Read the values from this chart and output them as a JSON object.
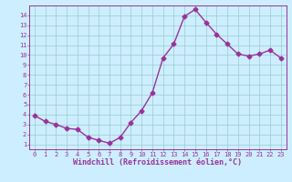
{
  "x": [
    0,
    1,
    2,
    3,
    4,
    5,
    6,
    7,
    8,
    9,
    10,
    11,
    12,
    13,
    14,
    15,
    16,
    17,
    18,
    19,
    20,
    21,
    22,
    23
  ],
  "y": [
    3.9,
    3.3,
    3.0,
    2.6,
    2.5,
    1.7,
    1.4,
    1.1,
    1.7,
    3.2,
    4.4,
    6.2,
    9.7,
    11.1,
    13.9,
    14.6,
    13.3,
    12.1,
    11.1,
    10.1,
    9.9,
    10.1,
    10.5,
    9.7
  ],
  "line_color": "#993399",
  "marker": "D",
  "markersize": 2.5,
  "linewidth": 1.0,
  "xlabel": "Windchill (Refroidissement éolien,°C)",
  "xlim": [
    -0.5,
    23.5
  ],
  "ylim": [
    0.5,
    15.0
  ],
  "yticks": [
    1,
    2,
    3,
    4,
    5,
    6,
    7,
    8,
    9,
    10,
    11,
    12,
    13,
    14
  ],
  "xticks": [
    0,
    1,
    2,
    3,
    4,
    5,
    6,
    7,
    8,
    9,
    10,
    11,
    12,
    13,
    14,
    15,
    16,
    17,
    18,
    19,
    20,
    21,
    22,
    23
  ],
  "grid_color": "#99cccc",
  "bg_color": "#cceeff",
  "tick_color": "#993399",
  "tick_fontsize": 5.0,
  "xlabel_fontsize": 6.0,
  "spine_color": "#993399"
}
